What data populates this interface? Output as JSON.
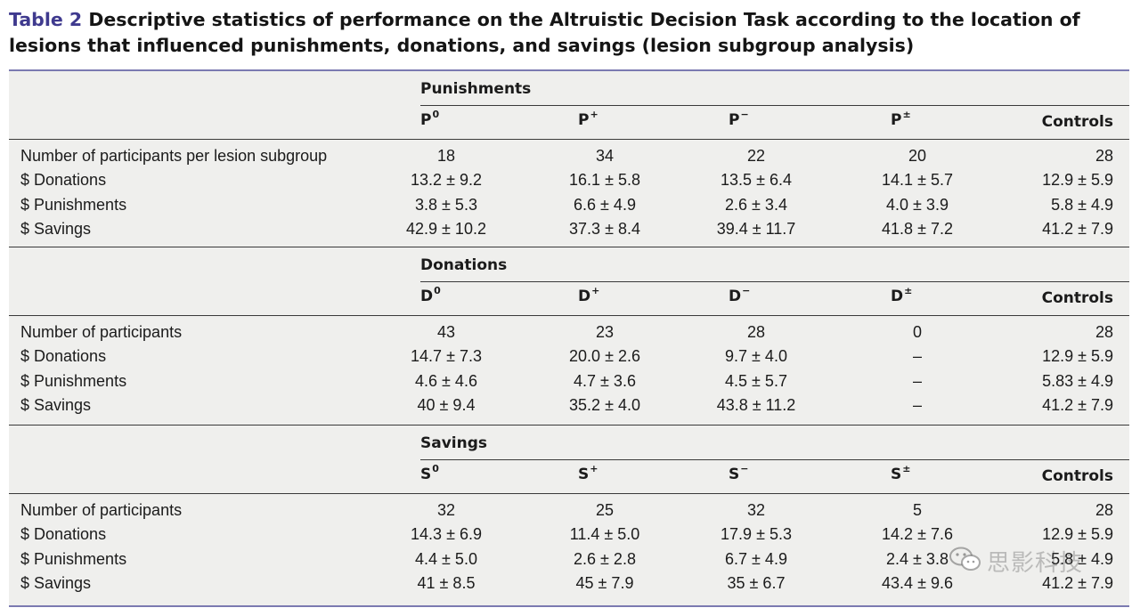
{
  "caption": {
    "number": "Table 2",
    "title": "Descriptive statistics of performance on the Altruistic Decision Task according to the location of lesions that influenced punishments, donations, and savings (lesion subgroup analysis)"
  },
  "sections": [
    {
      "group": "Punishments",
      "columns": [
        {
          "letter": "P",
          "sup": "0"
        },
        {
          "letter": "P",
          "sup": "+"
        },
        {
          "letter": "P",
          "sup": "−"
        },
        {
          "letter": "P",
          "sup": "±"
        },
        {
          "letter": "Controls",
          "sup": ""
        }
      ],
      "rows": [
        {
          "label": "Number of participants per lesion subgroup",
          "values": [
            "18",
            "34",
            "22",
            "20",
            "28"
          ]
        },
        {
          "label": "$ Donations",
          "values": [
            "13.2 ± 9.2",
            "16.1 ± 5.8",
            "13.5 ± 6.4",
            "14.1 ± 5.7",
            "12.9 ± 5.9"
          ]
        },
        {
          "label": "$ Punishments",
          "values": [
            "3.8 ± 5.3",
            "6.6 ± 4.9",
            "2.6 ± 3.4",
            "4.0 ± 3.9",
            "5.8 ± 4.9"
          ]
        },
        {
          "label": "$ Savings",
          "values": [
            "42.9 ± 10.2",
            "37.3 ± 8.4",
            "39.4 ± 11.7",
            "41.8 ± 7.2",
            "41.2 ± 7.9"
          ]
        }
      ]
    },
    {
      "group": "Donations",
      "columns": [
        {
          "letter": "D",
          "sup": "0"
        },
        {
          "letter": "D",
          "sup": "+"
        },
        {
          "letter": "D",
          "sup": "−"
        },
        {
          "letter": "D",
          "sup": "±"
        },
        {
          "letter": "Controls",
          "sup": ""
        }
      ],
      "rows": [
        {
          "label": "Number of participants",
          "values": [
            "43",
            "23",
            "28",
            "0",
            "28"
          ]
        },
        {
          "label": "$ Donations",
          "values": [
            "14.7 ± 7.3",
            "20.0 ± 2.6",
            "9.7 ± 4.0",
            "–",
            "12.9 ± 5.9"
          ]
        },
        {
          "label": "$ Punishments",
          "values": [
            "4.6 ± 4.6",
            "4.7 ± 3.6",
            "4.5 ± 5.7",
            "–",
            "5.83 ± 4.9"
          ]
        },
        {
          "label": "$ Savings",
          "values": [
            "40 ± 9.4",
            "35.2 ± 4.0",
            "43.8 ± 11.2",
            "–",
            "41.2 ± 7.9"
          ]
        }
      ]
    },
    {
      "group": "Savings",
      "columns": [
        {
          "letter": "S",
          "sup": "0"
        },
        {
          "letter": "S",
          "sup": "+"
        },
        {
          "letter": "S",
          "sup": "−"
        },
        {
          "letter": "S",
          "sup": "±"
        },
        {
          "letter": "Controls",
          "sup": ""
        }
      ],
      "rows": [
        {
          "label": "Number of participants",
          "values": [
            "32",
            "25",
            "32",
            "5",
            "28"
          ]
        },
        {
          "label": "$ Donations",
          "values": [
            "14.3 ± 6.9",
            "11.4 ± 5.0",
            "17.9 ± 5.3",
            "14.2 ± 7.6",
            "12.9 ± 5.9"
          ]
        },
        {
          "label": "$ Punishments",
          "values": [
            "4.4 ± 5.0",
            "2.6 ± 2.8",
            "6.7 ± 4.9",
            "2.4 ± 3.8",
            "5.8 ± 4.9"
          ]
        },
        {
          "label": "$ Savings",
          "values": [
            "41 ± 8.5",
            "45 ± 7.9",
            "35 ± 6.7",
            "43.4 ± 9.6",
            "41.2 ± 7.9"
          ]
        }
      ]
    }
  ],
  "watermark": {
    "text": "思影科技",
    "icon": "wechat-icon"
  }
}
